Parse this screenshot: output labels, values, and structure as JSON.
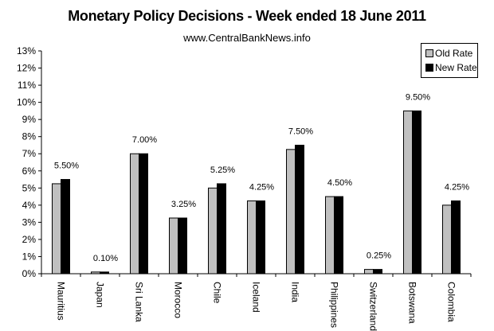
{
  "chart_data": {
    "type": "bar",
    "title": "Monetary Policy Decisions - Week ended 18 June 2011",
    "subtitle": "www.CentralBankNews.info",
    "xlabel": "",
    "ylabel": "",
    "ylim": [
      0,
      13
    ],
    "y_ticks": [
      "0%",
      "1%",
      "2%",
      "3%",
      "4%",
      "5%",
      "6%",
      "7%",
      "8%",
      "9%",
      "10%",
      "11%",
      "12%",
      "13%"
    ],
    "grid": false,
    "legend_position": "top-right",
    "categories": [
      "Mauritius",
      "Japan",
      "Sri Lanka",
      "Morocco",
      "Chile",
      "Iceland",
      "India",
      "Philippines",
      "Switzerland",
      "Botswana",
      "Colombia"
    ],
    "series": [
      {
        "name": "Old Rate",
        "color": "#c0c0c0",
        "values": [
          5.25,
          0.1,
          7.0,
          3.25,
          5.0,
          4.25,
          7.25,
          4.5,
          0.25,
          9.5,
          4.0
        ]
      },
      {
        "name": "New Rate",
        "color": "#000000",
        "values": [
          5.5,
          0.1,
          7.0,
          3.25,
          5.25,
          4.25,
          7.5,
          4.5,
          0.25,
          9.5,
          4.25
        ]
      }
    ],
    "data_labels": [
      "5.50%",
      "0.10%",
      "7.00%",
      "3.25%",
      "5.25%",
      "4.25%",
      "7.50%",
      "4.50%",
      "0.25%",
      "9.50%",
      "4.25%"
    ]
  },
  "legend": {
    "old_label": "Old Rate",
    "new_label": "New Rate"
  }
}
